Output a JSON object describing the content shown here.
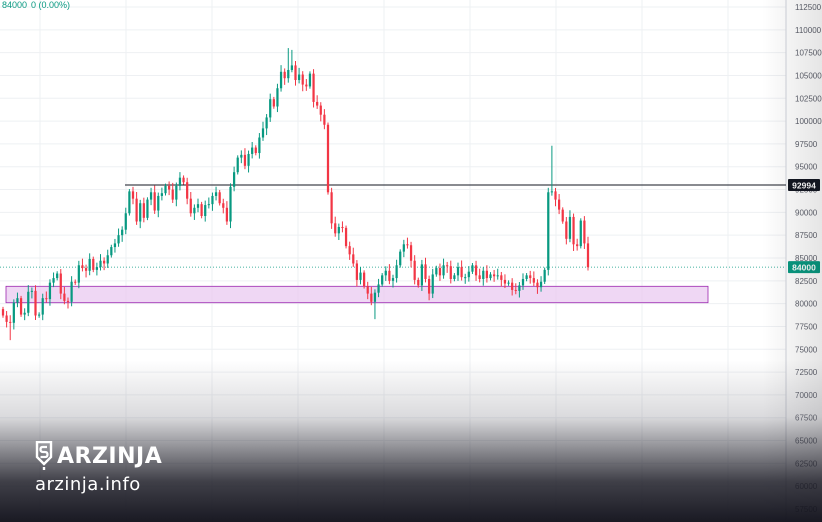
{
  "header": {
    "price": "84000",
    "change": "0 (0.00%)",
    "color_up": "#089981",
    "color_down": "#f23645"
  },
  "watermark": {
    "brand": "ARZINJA",
    "site": "arzinja.info",
    "logo_icon": "shield-dollar-icon"
  },
  "chart_data": {
    "type": "candlestick",
    "y_axis": {
      "ticks": [
        "112500",
        "110000",
        "107500",
        "105000",
        "102500",
        "100000",
        "97500",
        "95000",
        "92500",
        "90000",
        "87500",
        "85000",
        "82500",
        "80000",
        "77500",
        "75000",
        "72500",
        "70000",
        "67500",
        "65000",
        "62500",
        "60000",
        "57500"
      ],
      "ylim": [
        56800,
        113200
      ],
      "position": "right"
    },
    "grid": true,
    "last_price": {
      "value": 84000,
      "label": "84000",
      "color": "#089981"
    },
    "resistance_line": {
      "value": 92994,
      "label": "92994",
      "color": "#131722"
    },
    "support_zone": {
      "low": 80100,
      "high": 81900,
      "fill": "#e9c9f0",
      "stroke": "#9c27b0"
    },
    "closes": [
      78700,
      78000,
      77900,
      80100,
      80600,
      78800,
      79000,
      81300,
      81400,
      78700,
      78800,
      80600,
      80500,
      82300,
      82800,
      83300,
      81100,
      80300,
      80200,
      82400,
      82300,
      84200,
      83900,
      83600,
      84900,
      83700,
      84000,
      84700,
      84400,
      85300,
      86200,
      86600,
      87500,
      88100,
      89900,
      92300,
      91500,
      89000,
      91000,
      89400,
      91400,
      92200,
      90200,
      91800,
      92100,
      92900,
      92500,
      91400,
      92900,
      93800,
      93300,
      91500,
      89900,
      90500,
      90900,
      89600,
      90800,
      90900,
      91800,
      92200,
      91000,
      90500,
      89000,
      92800,
      94400,
      96000,
      96300,
      95100,
      96400,
      97100,
      96500,
      98200,
      99200,
      100400,
      102400,
      101600,
      103600,
      105400,
      104700,
      105600,
      106100,
      104500,
      105100,
      104000,
      103800,
      105200,
      102100,
      101700,
      100700,
      99600,
      92200,
      88800,
      87700,
      88400,
      88300,
      86300,
      85400,
      84400,
      82600,
      83400,
      81900,
      81100,
      80200,
      81200,
      82100,
      83100,
      83600,
      82500,
      82800,
      84200,
      85700,
      86500,
      86400,
      84700,
      82600,
      82000,
      84300,
      82700,
      81100,
      83200,
      83900,
      83100,
      84200,
      84100,
      82700,
      83100,
      84000,
      82900,
      82900,
      83500,
      84200,
      83100,
      82700,
      83600,
      82800,
      83200,
      83000,
      83100,
      82600,
      82200,
      82300,
      81500,
      81400,
      82000,
      82700,
      83100,
      82800,
      82300,
      81800,
      82400,
      83700,
      92200,
      92300,
      91400,
      90300,
      89000,
      87100,
      89500,
      86500,
      86300,
      89100,
      86600,
      84000
    ],
    "highs_notable": {
      "peak": 108000,
      "spike": 97300
    },
    "lows_notable": {
      "trough": 78300,
      "start": 76000
    }
  }
}
